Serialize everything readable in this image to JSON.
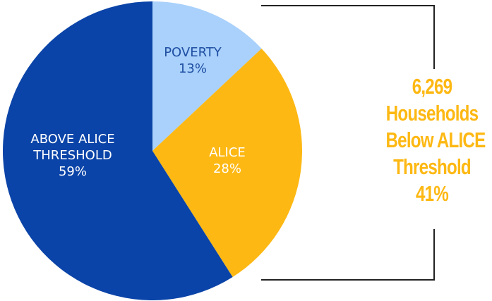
{
  "chart_data": {
    "type": "pie",
    "slices": [
      {
        "label": "POVERTY",
        "pct_text": "13%",
        "value": 13,
        "color": "#a9d1fb",
        "label_color": "#1f4ea3"
      },
      {
        "label": "ALICE",
        "pct_text": "28%",
        "value": 28,
        "color": "#fdb813",
        "label_color": "#ffffff"
      },
      {
        "label": "ABOVE ALICE\nTHRESHOLD",
        "pct_text": "59%",
        "value": 59,
        "color": "#0b44a8",
        "label_color": "#ffffff"
      }
    ]
  },
  "callout": {
    "line1": "6,269",
    "line2": "Households",
    "line3": "Below ALICE",
    "line4": "Threshold",
    "line5": "41%",
    "color": "#fdb813"
  },
  "bracket_color": "#222222"
}
